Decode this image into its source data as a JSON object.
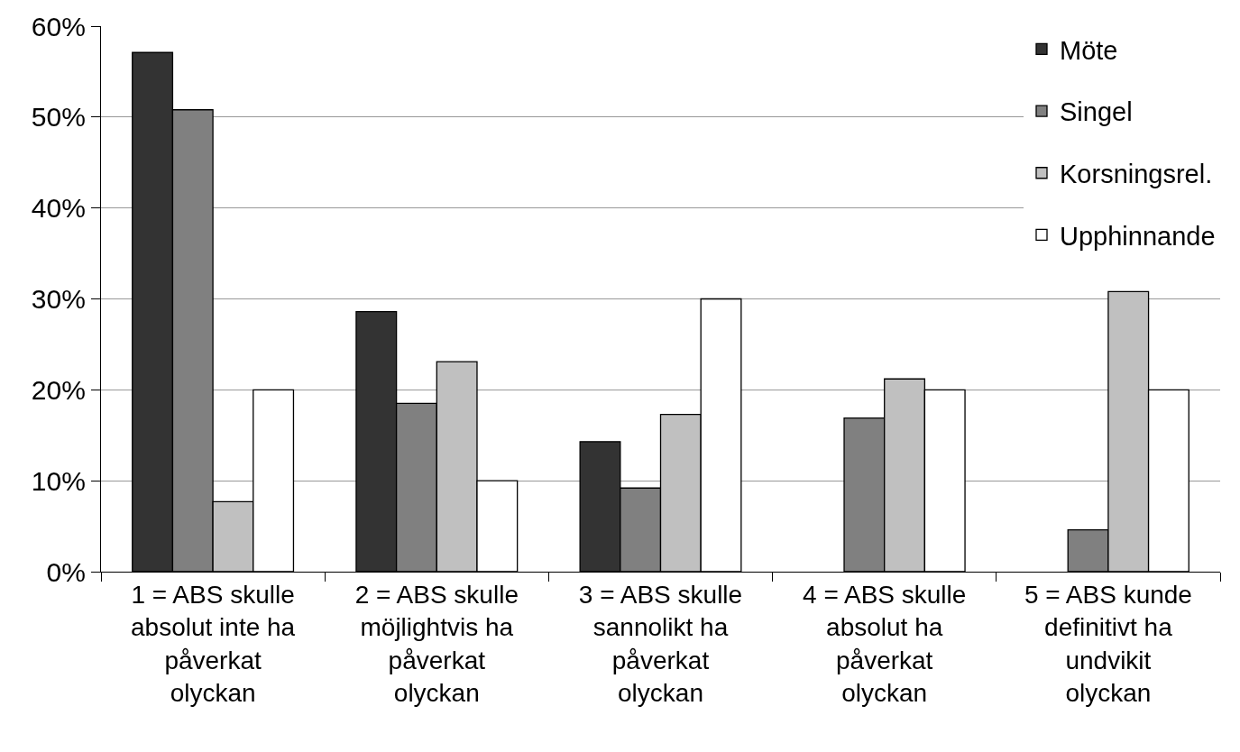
{
  "chart_data": {
    "type": "bar",
    "categories": [
      "1 = ABS skulle absolut inte ha påverkat olyckan",
      "2 = ABS skulle möjlightvis ha påverkat olyckan",
      "3 = ABS skulle sannolikt ha påverkat olyckan",
      "4 = ABS skulle absolut ha påverkat olyckan",
      "5 = ABS kunde definitivt ha undvikit olyckan"
    ],
    "series": [
      {
        "name": "Möte",
        "color": "#333333",
        "values": [
          57.1,
          28.6,
          14.3,
          null,
          null
        ]
      },
      {
        "name": "Singel",
        "color": "#808080",
        "values": [
          50.8,
          18.5,
          9.2,
          16.9,
          4.6
        ]
      },
      {
        "name": "Korsningsrel.",
        "color": "#c0c0c0",
        "values": [
          7.7,
          23.1,
          17.3,
          21.2,
          30.8
        ]
      },
      {
        "name": "Upphinnande",
        "color": "#ffffff",
        "values": [
          20,
          10,
          30,
          20,
          20
        ]
      }
    ],
    "ylim": [
      0,
      60
    ],
    "yticks": [
      {
        "value": 0,
        "label": "0%"
      },
      {
        "value": 10,
        "label": "10%"
      },
      {
        "value": 20,
        "label": "20%"
      },
      {
        "value": 30,
        "label": "30%"
      },
      {
        "value": 40,
        "label": "40%"
      },
      {
        "value": 50,
        "label": "50%"
      },
      {
        "value": 60,
        "label": "60%"
      }
    ],
    "grid": "y",
    "legend": "top right"
  }
}
